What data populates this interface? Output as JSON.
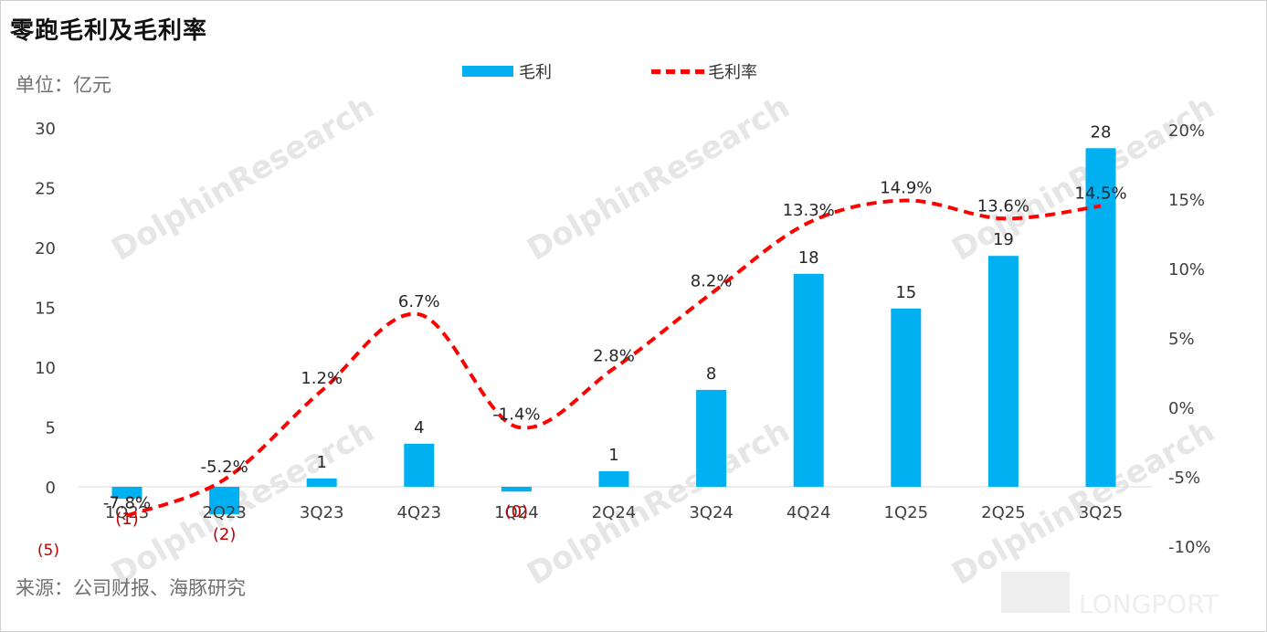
{
  "title": "零跑毛利及毛利率",
  "unit_label": "单位：亿元",
  "source": "来源：公司财报、海豚研究",
  "legend": {
    "bar": "毛利",
    "line": "毛利率"
  },
  "colors": {
    "bar": "#00B0F0",
    "line": "#FF0000",
    "negative_label": "#C00000"
  },
  "watermark": {
    "text": "DolphinResearch",
    "brand": "LONGPORT"
  },
  "chart_data": {
    "type": "bar",
    "categories": [
      "1Q23",
      "2Q23",
      "3Q23",
      "4Q23",
      "1Q24",
      "2Q24",
      "3Q24",
      "4Q24",
      "1Q25",
      "2Q25",
      "3Q25"
    ],
    "series": [
      {
        "name": "毛利",
        "type": "bar",
        "axis": "left",
        "values": [
          -1,
          -2.3,
          0.7,
          3.6,
          -0.4,
          1.3,
          8.1,
          17.8,
          14.9,
          19.3,
          28.3
        ],
        "labels": [
          "(1)",
          "(2)",
          "1",
          "4",
          "(0)",
          "1",
          "8",
          "18",
          "15",
          "19",
          "28"
        ]
      },
      {
        "name": "毛利率",
        "type": "line",
        "axis": "right",
        "values": [
          -7.8,
          -5.2,
          1.2,
          6.7,
          -1.4,
          2.8,
          8.2,
          13.3,
          14.9,
          13.6,
          14.5
        ],
        "labels": [
          "-7.8%",
          "-5.2%",
          "1.2%",
          "6.7%",
          "-1.4%",
          "2.8%",
          "8.2%",
          "13.3%",
          "14.9%",
          "13.6%",
          "14.5%"
        ]
      }
    ],
    "left_axis": {
      "ticks": [
        30,
        25,
        20,
        15,
        10,
        5,
        0
      ],
      "tick_labels": [
        "30",
        "25",
        "20",
        "15",
        "10",
        "5",
        "0"
      ],
      "extra_label": "(5)",
      "range": [
        -5,
        30
      ]
    },
    "right_axis": {
      "ticks": [
        20,
        15,
        10,
        5,
        0,
        -5,
        -10
      ],
      "tick_labels": [
        "20%",
        "15%",
        "10%",
        "5%",
        "0%",
        "-5%",
        "-10%"
      ],
      "range": [
        -10,
        20
      ]
    },
    "grid": false,
    "legend_position": "top"
  }
}
